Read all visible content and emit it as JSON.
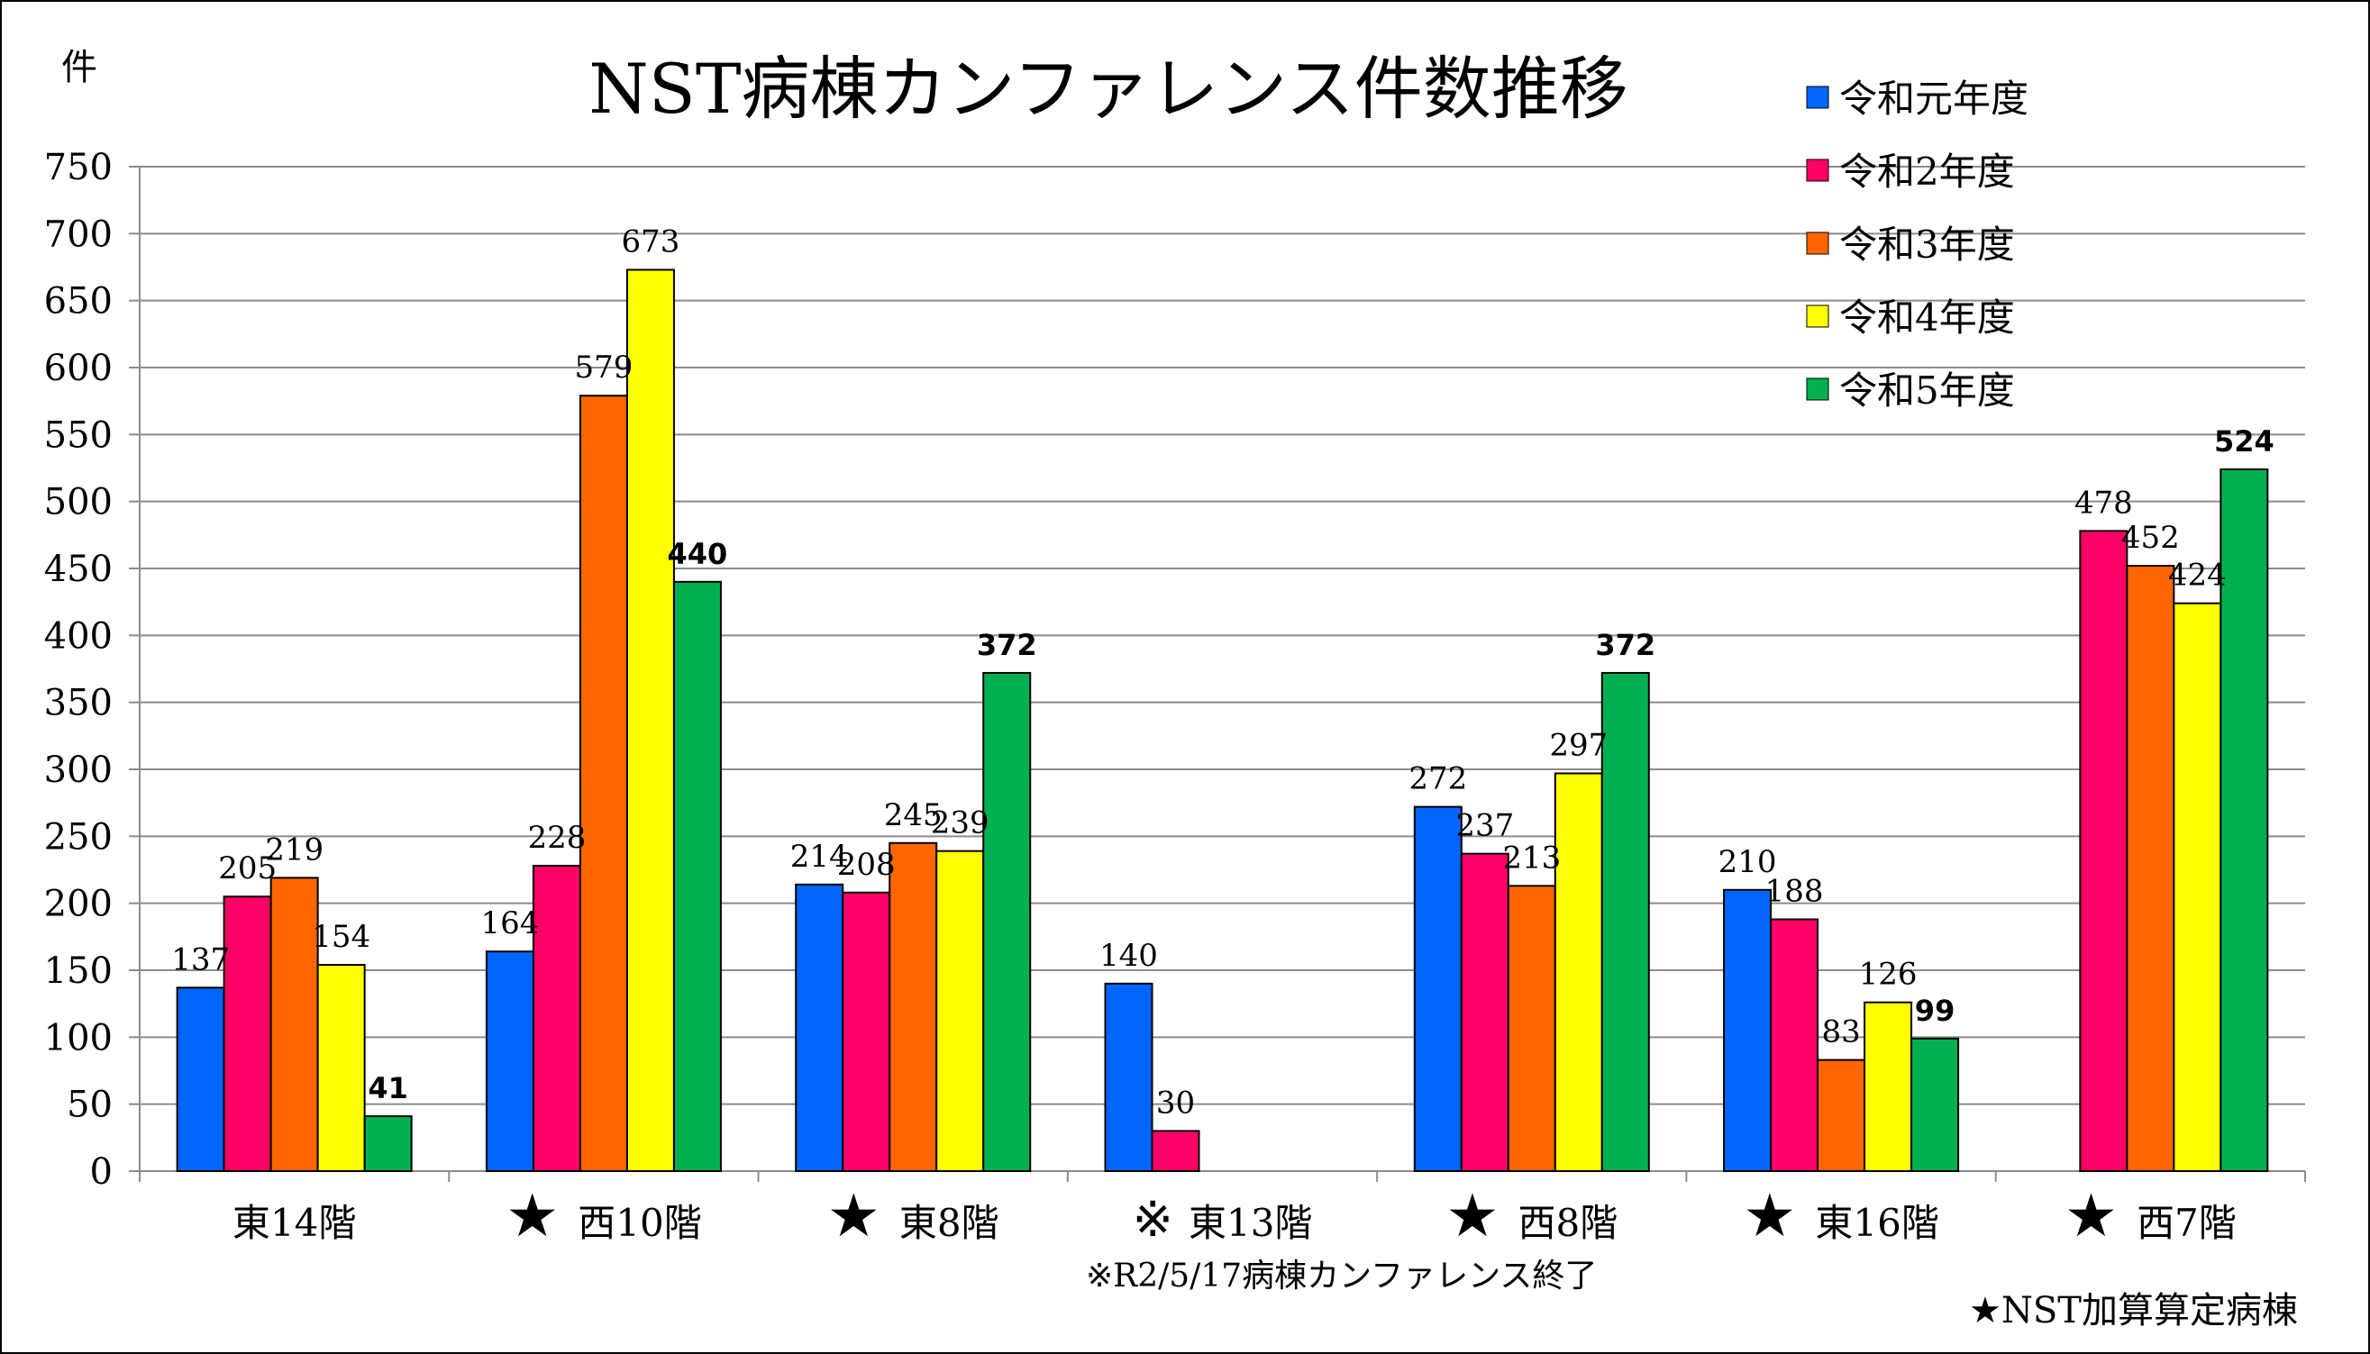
{
  "chart_data": {
    "type": "bar",
    "title": "NST病棟カンファレンス件数推移",
    "ylabel": "件",
    "ylim": [
      0,
      750
    ],
    "ytick_step": 50,
    "grid": true,
    "legend_placement": "top-right",
    "categories": [
      {
        "mark": "",
        "label": "東14階"
      },
      {
        "mark": "★",
        "label": "西10階"
      },
      {
        "mark": "★",
        "label": "東8階"
      },
      {
        "mark": "※",
        "label": "東13階"
      },
      {
        "mark": "★",
        "label": "西8階"
      },
      {
        "mark": "★",
        "label": "東16階"
      },
      {
        "mark": "★",
        "label": "西7階"
      }
    ],
    "series": [
      {
        "name": "令和元年度",
        "color": "#0066FF",
        "values": [
          137,
          164,
          214,
          140,
          272,
          210,
          null
        ]
      },
      {
        "name": "令和2年度",
        "color": "#FF0066",
        "values": [
          205,
          228,
          208,
          30,
          237,
          188,
          478
        ]
      },
      {
        "name": "令和3年度",
        "color": "#FF6600",
        "values": [
          219,
          579,
          245,
          null,
          213,
          83,
          452
        ]
      },
      {
        "name": "令和4年度",
        "color": "#FFFF00",
        "values": [
          154,
          673,
          239,
          null,
          297,
          126,
          424
        ]
      },
      {
        "name": "令和5年度",
        "color": "#00B050",
        "values": [
          41,
          440,
          372,
          null,
          372,
          99,
          524
        ]
      }
    ],
    "annotations": {
      "note": "※R2/5/17病棟カンファレンス終了",
      "footnote": "★NST加算算定病棟"
    }
  }
}
